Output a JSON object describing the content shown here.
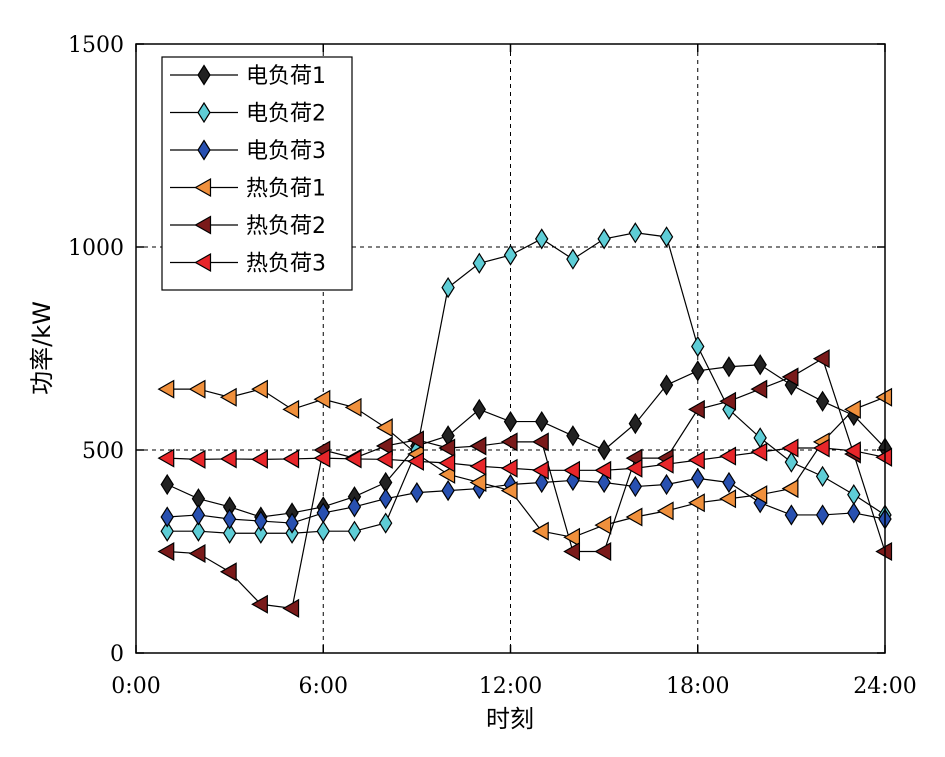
{
  "chart_data": {
    "type": "line",
    "title": "",
    "xlabel": "时刻",
    "ylabel": "功率/kW",
    "xlim": [
      0,
      24
    ],
    "ylim": [
      0,
      1500
    ],
    "xticks": [
      0,
      6,
      12,
      18,
      24
    ],
    "xtick_labels": [
      "0:00",
      "6:00",
      "12:00",
      "18:00",
      "24:00"
    ],
    "yticks": [
      0,
      500,
      1000,
      1500
    ],
    "ytick_labels": [
      "0",
      "500",
      "1000",
      "1500"
    ],
    "grid": "dashed at ticks",
    "legend_position": "top-left",
    "x": [
      1,
      2,
      3,
      4,
      5,
      6,
      7,
      8,
      9,
      10,
      11,
      12,
      13,
      14,
      15,
      16,
      17,
      18,
      19,
      20,
      21,
      22,
      23,
      24
    ],
    "series": [
      {
        "name": "电负荷1",
        "marker": "diamond",
        "color": "#222222",
        "values": [
          415,
          380,
          360,
          335,
          345,
          360,
          385,
          420,
          510,
          535,
          600,
          570,
          570,
          535,
          500,
          565,
          660,
          695,
          705,
          710,
          660,
          620,
          585,
          505
        ]
      },
      {
        "name": "电负荷2",
        "marker": "diamond",
        "color": "#5ecdd6",
        "values": [
          300,
          300,
          295,
          295,
          295,
          300,
          300,
          320,
          500,
          900,
          960,
          980,
          1020,
          970,
          1020,
          1035,
          1025,
          755,
          600,
          530,
          470,
          435,
          390,
          340
        ]
      },
      {
        "name": "电负荷3",
        "marker": "diamond",
        "color": "#2850b0",
        "values": [
          335,
          340,
          330,
          325,
          320,
          345,
          360,
          380,
          395,
          400,
          405,
          415,
          420,
          425,
          420,
          410,
          415,
          430,
          420,
          370,
          340,
          340,
          345,
          330
        ]
      },
      {
        "name": "热负荷1",
        "marker": "triangle-left",
        "color": "#f0903c",
        "values": [
          650,
          650,
          630,
          650,
          600,
          625,
          605,
          555,
          490,
          440,
          420,
          400,
          300,
          285,
          315,
          335,
          350,
          370,
          380,
          390,
          405,
          520,
          600,
          630
        ]
      },
      {
        "name": "热负荷2",
        "marker": "triangle-left",
        "color": "#7a1a1a",
        "values": [
          250,
          245,
          200,
          120,
          110,
          500,
          480,
          510,
          525,
          505,
          510,
          520,
          520,
          250,
          250,
          480,
          480,
          600,
          620,
          650,
          680,
          725,
          490,
          250
        ]
      },
      {
        "name": "热负荷3",
        "marker": "triangle-left",
        "color": "#e8262a",
        "values": [
          480,
          477,
          478,
          477,
          478,
          480,
          478,
          477,
          472,
          468,
          460,
          455,
          450,
          450,
          450,
          455,
          465,
          475,
          485,
          495,
          505,
          505,
          498,
          482
        ]
      }
    ]
  }
}
